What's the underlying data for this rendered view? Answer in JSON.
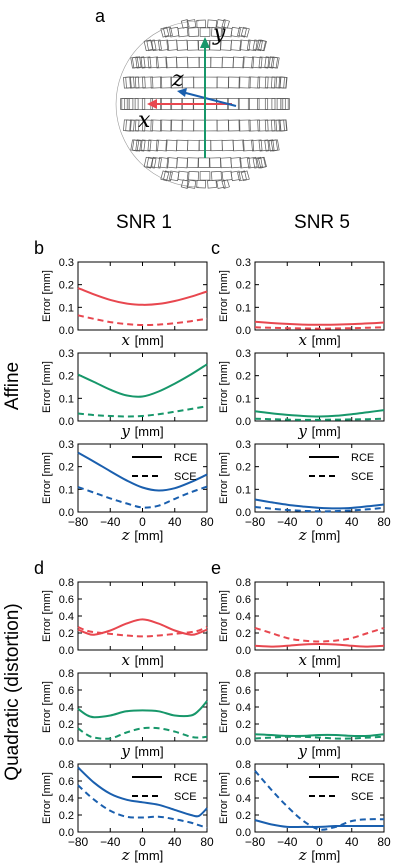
{
  "figure": {
    "panel_a_label": "a",
    "axis_x": "x",
    "axis_y": "y",
    "axis_z": "z",
    "col_left": "SNR 1",
    "col_right": "SNR 5",
    "row_top": "Affine",
    "row_bottom": "Quadratic (distortion)",
    "ylabel": "Error [mm]",
    "colors": {
      "x": "#e8474f",
      "y": "#17976a",
      "z": "#1a5fae"
    }
  },
  "chart_data": [
    {
      "panel": "b",
      "title": "",
      "type": "line",
      "row": "Affine",
      "column": "SNR 1",
      "axis": "x",
      "xlabel": "x [mm]",
      "ylabel": "Error [mm]",
      "xlim": [
        -80,
        80
      ],
      "ylim": [
        0,
        0.3
      ],
      "yticks": [
        "0.0",
        "0.1",
        "0.2",
        "0.3"
      ],
      "xticks": [],
      "x": [
        -80,
        -60,
        -40,
        -20,
        0,
        20,
        40,
        60,
        80
      ],
      "series": [
        {
          "name": "RCE",
          "style": "solid",
          "values": [
            0.185,
            0.157,
            0.133,
            0.117,
            0.111,
            0.115,
            0.128,
            0.147,
            0.17
          ]
        },
        {
          "name": "SCE",
          "style": "dashed",
          "values": [
            0.065,
            0.049,
            0.035,
            0.026,
            0.022,
            0.024,
            0.03,
            0.039,
            0.05
          ]
        }
      ]
    },
    {
      "panel": "c",
      "title": "",
      "type": "line",
      "row": "Affine",
      "column": "SNR 5",
      "axis": "x",
      "xlabel": "x [mm]",
      "ylabel": "Error [mm]",
      "xlim": [
        -80,
        80
      ],
      "ylim": [
        0,
        0.3
      ],
      "yticks": [
        "0.0",
        "0.1",
        "0.2",
        "0.3"
      ],
      "xticks": [],
      "x": [
        -80,
        -60,
        -40,
        -20,
        0,
        20,
        40,
        60,
        80
      ],
      "series": [
        {
          "name": "RCE",
          "style": "solid",
          "values": [
            0.036,
            0.031,
            0.027,
            0.024,
            0.023,
            0.024,
            0.026,
            0.029,
            0.033
          ]
        },
        {
          "name": "SCE",
          "style": "dashed",
          "values": [
            0.012,
            0.01,
            0.008,
            0.007,
            0.006,
            0.007,
            0.008,
            0.01,
            0.012
          ]
        }
      ]
    },
    {
      "panel": "",
      "title": "",
      "type": "line",
      "row": "Affine",
      "column": "SNR 1",
      "axis": "y",
      "xlabel": "y [mm]",
      "ylabel": "Error [mm]",
      "xlim": [
        -80,
        80
      ],
      "ylim": [
        0,
        0.3
      ],
      "yticks": [
        "0.0",
        "0.1",
        "0.2",
        "0.3"
      ],
      "xticks": [],
      "x": [
        -80,
        -60,
        -40,
        -20,
        0,
        20,
        40,
        60,
        80
      ],
      "series": [
        {
          "name": "RCE",
          "style": "solid",
          "values": [
            0.205,
            0.172,
            0.138,
            0.113,
            0.108,
            0.13,
            0.165,
            0.205,
            0.25
          ]
        },
        {
          "name": "SCE",
          "style": "dashed",
          "values": [
            0.033,
            0.026,
            0.022,
            0.02,
            0.022,
            0.03,
            0.041,
            0.053,
            0.065
          ]
        }
      ]
    },
    {
      "panel": "",
      "title": "",
      "type": "line",
      "row": "Affine",
      "column": "SNR 5",
      "axis": "y",
      "xlabel": "y [mm]",
      "ylabel": "Error [mm]",
      "xlim": [
        -80,
        80
      ],
      "ylim": [
        0,
        0.3
      ],
      "yticks": [
        "0.0",
        "0.1",
        "0.2",
        "0.3"
      ],
      "xticks": [],
      "x": [
        -80,
        -60,
        -40,
        -20,
        0,
        20,
        40,
        60,
        80
      ],
      "series": [
        {
          "name": "RCE",
          "style": "solid",
          "values": [
            0.043,
            0.034,
            0.027,
            0.022,
            0.02,
            0.023,
            0.03,
            0.039,
            0.048
          ]
        },
        {
          "name": "SCE",
          "style": "dashed",
          "values": [
            0.01,
            0.008,
            0.006,
            0.005,
            0.005,
            0.006,
            0.007,
            0.008,
            0.01
          ]
        }
      ]
    },
    {
      "panel": "",
      "title": "",
      "type": "line",
      "row": "Affine",
      "column": "SNR 1",
      "axis": "z",
      "xlabel": "z [mm]",
      "ylabel": "Error [mm]",
      "xlim": [
        -80,
        80
      ],
      "ylim": [
        0,
        0.3
      ],
      "yticks": [
        "0.0",
        "0.1",
        "0.2",
        "0.3"
      ],
      "xticks": [
        "−80",
        "−40",
        "0",
        "40",
        "80"
      ],
      "legend": "right",
      "x": [
        -80,
        -60,
        -40,
        -20,
        0,
        20,
        40,
        60,
        80
      ],
      "series": [
        {
          "name": "RCE",
          "style": "solid",
          "values": [
            0.262,
            0.222,
            0.18,
            0.14,
            0.108,
            0.095,
            0.105,
            0.132,
            0.165
          ]
        },
        {
          "name": "SCE",
          "style": "dashed",
          "values": [
            0.11,
            0.085,
            0.06,
            0.038,
            0.02,
            0.028,
            0.058,
            0.087,
            0.112
          ]
        }
      ]
    },
    {
      "panel": "",
      "title": "",
      "type": "line",
      "row": "Affine",
      "column": "SNR 5",
      "axis": "z",
      "xlabel": "z [mm]",
      "ylabel": "Error [mm]",
      "xlim": [
        -80,
        80
      ],
      "ylim": [
        0,
        0.3
      ],
      "yticks": [
        "0.0",
        "0.1",
        "0.2",
        "0.3"
      ],
      "xticks": [
        "−80",
        "−40",
        "0",
        "40",
        "80"
      ],
      "legend": "right",
      "x": [
        -80,
        -60,
        -40,
        -20,
        0,
        20,
        40,
        60,
        80
      ],
      "series": [
        {
          "name": "RCE",
          "style": "solid",
          "values": [
            0.055,
            0.043,
            0.032,
            0.024,
            0.018,
            0.016,
            0.018,
            0.025,
            0.033
          ]
        },
        {
          "name": "SCE",
          "style": "dashed",
          "values": [
            0.022,
            0.015,
            0.009,
            0.005,
            0.003,
            0.004,
            0.007,
            0.012,
            0.018
          ]
        }
      ]
    },
    {
      "panel": "d",
      "title": "",
      "type": "line",
      "row": "Quadratic (distortion)",
      "column": "SNR 1",
      "axis": "x",
      "xlabel": "x [mm]",
      "ylabel": "Error [mm]",
      "xlim": [
        -80,
        80
      ],
      "ylim": [
        0,
        0.8
      ],
      "yticks": [
        "0.0",
        "0.2",
        "0.4",
        "0.6",
        "0.8"
      ],
      "xticks": [],
      "x": [
        -80,
        -70,
        -60,
        -40,
        -20,
        0,
        20,
        40,
        60,
        70,
        80
      ],
      "series": [
        {
          "name": "RCE",
          "style": "solid",
          "values": [
            0.24,
            0.2,
            0.18,
            0.23,
            0.31,
            0.36,
            0.31,
            0.23,
            0.18,
            0.2,
            0.24
          ]
        },
        {
          "name": "SCE",
          "style": "dashed",
          "values": [
            0.27,
            0.23,
            0.21,
            0.19,
            0.17,
            0.16,
            0.17,
            0.19,
            0.21,
            0.23,
            0.27
          ]
        }
      ]
    },
    {
      "panel": "e",
      "title": "",
      "type": "line",
      "row": "Quadratic (distortion)",
      "column": "SNR 5",
      "axis": "x",
      "xlabel": "x [mm]",
      "ylabel": "Error [mm]",
      "xlim": [
        -80,
        80
      ],
      "ylim": [
        0,
        0.8
      ],
      "yticks": [
        "0.0",
        "0.2",
        "0.4",
        "0.6",
        "0.8"
      ],
      "xticks": [],
      "x": [
        -80,
        -60,
        -40,
        -20,
        0,
        20,
        40,
        60,
        80
      ],
      "series": [
        {
          "name": "RCE",
          "style": "solid",
          "values": [
            0.05,
            0.04,
            0.05,
            0.065,
            0.07,
            0.065,
            0.05,
            0.04,
            0.05
          ]
        },
        {
          "name": "SCE",
          "style": "dashed",
          "values": [
            0.26,
            0.2,
            0.14,
            0.11,
            0.1,
            0.11,
            0.14,
            0.2,
            0.26
          ]
        }
      ]
    },
    {
      "panel": "",
      "title": "",
      "type": "line",
      "row": "Quadratic (distortion)",
      "column": "SNR 1",
      "axis": "y",
      "xlabel": "y [mm]",
      "ylabel": "Error [mm]",
      "xlim": [
        -80,
        80
      ],
      "ylim": [
        0,
        0.8
      ],
      "yticks": [
        "0.0",
        "0.2",
        "0.4",
        "0.6",
        "0.8"
      ],
      "xticks": [],
      "x": [
        -80,
        -70,
        -60,
        -40,
        -20,
        0,
        20,
        40,
        60,
        70,
        80
      ],
      "series": [
        {
          "name": "RCE",
          "style": "solid",
          "values": [
            0.38,
            0.31,
            0.28,
            0.3,
            0.35,
            0.36,
            0.35,
            0.3,
            0.3,
            0.36,
            0.47
          ]
        },
        {
          "name": "SCE",
          "style": "dashed",
          "values": [
            0.15,
            0.08,
            0.04,
            0.03,
            0.1,
            0.15,
            0.15,
            0.11,
            0.05,
            0.04,
            0.05
          ]
        }
      ]
    },
    {
      "panel": "",
      "title": "",
      "type": "line",
      "row": "Quadratic (distortion)",
      "column": "SNR 5",
      "axis": "y",
      "xlabel": "y [mm]",
      "ylabel": "Error [mm]",
      "xlim": [
        -80,
        80
      ],
      "ylim": [
        0,
        0.8
      ],
      "yticks": [
        "0.0",
        "0.2",
        "0.4",
        "0.6",
        "0.8"
      ],
      "xticks": [],
      "x": [
        -80,
        -60,
        -40,
        -20,
        0,
        20,
        40,
        60,
        80
      ],
      "series": [
        {
          "name": "RCE",
          "style": "solid",
          "values": [
            0.08,
            0.07,
            0.06,
            0.06,
            0.07,
            0.07,
            0.06,
            0.06,
            0.08
          ]
        },
        {
          "name": "SCE",
          "style": "dashed",
          "values": [
            0.03,
            0.04,
            0.05,
            0.05,
            0.04,
            0.03,
            0.03,
            0.04,
            0.05
          ]
        }
      ]
    },
    {
      "panel": "",
      "title": "",
      "type": "line",
      "row": "Quadratic (distortion)",
      "column": "SNR 1",
      "axis": "z",
      "xlabel": "z [mm]",
      "ylabel": "Error [mm]",
      "xlim": [
        -80,
        80
      ],
      "ylim": [
        0,
        0.8
      ],
      "yticks": [
        "0.0",
        "0.2",
        "0.4",
        "0.6",
        "0.8"
      ],
      "xticks": [
        "−80",
        "−40",
        "0",
        "40",
        "80"
      ],
      "legend": "right",
      "x": [
        -80,
        -60,
        -40,
        -20,
        0,
        20,
        40,
        60,
        70,
        80
      ],
      "series": [
        {
          "name": "RCE",
          "style": "solid",
          "values": [
            0.76,
            0.58,
            0.45,
            0.38,
            0.35,
            0.32,
            0.26,
            0.2,
            0.19,
            0.28
          ]
        },
        {
          "name": "SCE",
          "style": "dashed",
          "values": [
            0.55,
            0.38,
            0.25,
            0.18,
            0.17,
            0.18,
            0.15,
            0.11,
            0.08,
            0.05
          ]
        }
      ]
    },
    {
      "panel": "",
      "title": "",
      "type": "line",
      "row": "Quadratic (distortion)",
      "column": "SNR 5",
      "axis": "z",
      "xlabel": "z [mm]",
      "ylabel": "Error [mm]",
      "xlim": [
        -80,
        80
      ],
      "ylim": [
        0,
        0.8
      ],
      "yticks": [
        "0.0",
        "0.2",
        "0.4",
        "0.6",
        "0.8"
      ],
      "xticks": [
        "−80",
        "−40",
        "0",
        "40",
        "80"
      ],
      "legend": "right",
      "x": [
        -80,
        -60,
        -40,
        -20,
        0,
        20,
        40,
        60,
        80
      ],
      "series": [
        {
          "name": "RCE",
          "style": "solid",
          "values": [
            0.14,
            0.09,
            0.06,
            0.06,
            0.06,
            0.07,
            0.07,
            0.07,
            0.07
          ]
        },
        {
          "name": "SCE",
          "style": "dashed",
          "values": [
            0.72,
            0.5,
            0.3,
            0.13,
            0.03,
            0.06,
            0.13,
            0.15,
            0.15
          ]
        }
      ]
    }
  ]
}
